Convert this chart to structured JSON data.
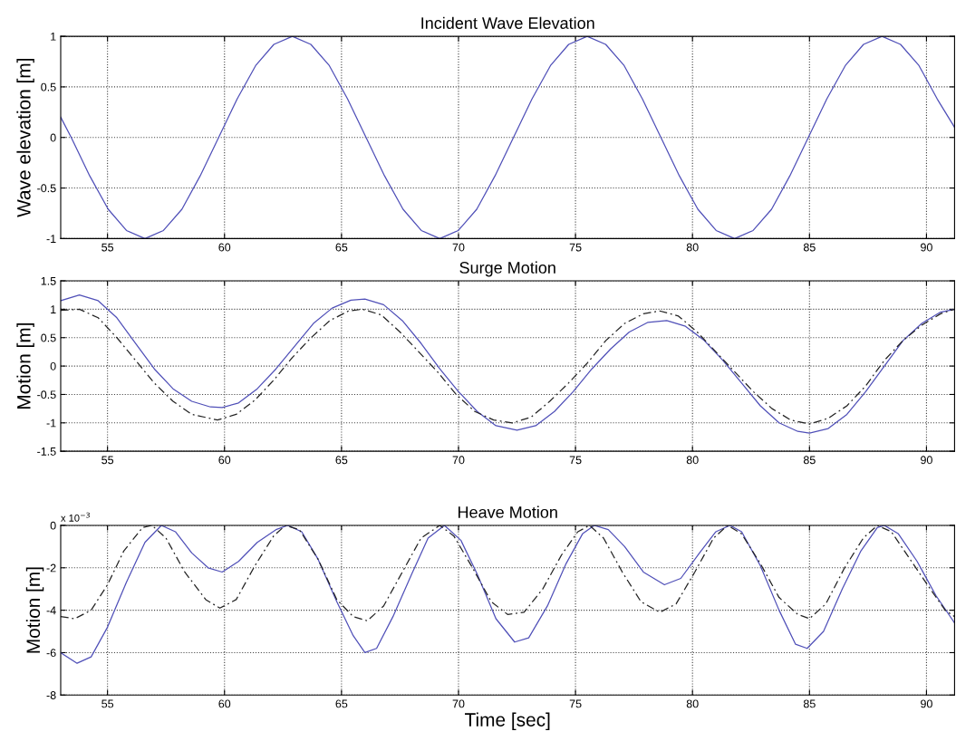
{
  "chart_data": [
    {
      "type": "line",
      "title": "Incident Wave Elevation",
      "ylabel": "Wave elevation [m]",
      "xlim": [
        53,
        91.2
      ],
      "xticks": [
        55,
        60,
        65,
        70,
        75,
        80,
        85,
        90
      ],
      "ylim": [
        -1,
        1
      ],
      "yticks": [
        -1,
        -0.5,
        0,
        0.5,
        1
      ],
      "grid": true,
      "series": [
        {
          "color": "#5050b8",
          "line_style": "solid",
          "x": [
            53.0,
            53.45,
            54.24,
            55.03,
            55.81,
            56.6,
            57.39,
            58.18,
            58.96,
            59.75,
            60.54,
            61.33,
            62.11,
            62.9,
            63.69,
            64.48,
            65.26,
            66.05,
            66.84,
            67.63,
            68.41,
            69.2,
            69.99,
            70.78,
            71.56,
            72.35,
            73.14,
            73.93,
            74.71,
            75.5,
            76.29,
            77.08,
            77.86,
            78.65,
            79.44,
            80.23,
            81.01,
            81.8,
            82.59,
            83.38,
            84.16,
            84.95,
            85.74,
            86.53,
            87.31,
            88.1,
            88.89,
            89.68,
            90.46,
            91.2
          ],
          "values": [
            0.2,
            0,
            -0.38,
            -0.71,
            -0.92,
            -1,
            -0.92,
            -0.71,
            -0.38,
            0,
            0.38,
            0.71,
            0.92,
            1,
            0.92,
            0.71,
            0.38,
            0,
            -0.38,
            -0.71,
            -0.92,
            -1,
            -0.92,
            -0.71,
            -0.38,
            0,
            0.38,
            0.71,
            0.92,
            1,
            0.92,
            0.71,
            0.38,
            0,
            -0.38,
            -0.71,
            -0.92,
            -1,
            -0.92,
            -0.71,
            -0.38,
            0,
            0.38,
            0.71,
            0.92,
            1,
            0.92,
            0.71,
            0.38,
            0.1
          ]
        }
      ]
    },
    {
      "type": "line",
      "title": "Surge Motion",
      "ylabel": "Motion [m]",
      "xlim": [
        53,
        91.2
      ],
      "xticks": [
        55,
        60,
        65,
        70,
        75,
        80,
        85,
        90
      ],
      "ylim": [
        -1.5,
        1.5
      ],
      "yticks": [
        -1.5,
        -1,
        -0.5,
        0,
        0.5,
        1,
        1.5
      ],
      "grid": true,
      "series": [
        {
          "color": "#5050b8",
          "line_style": "solid",
          "x": [
            53,
            53.8,
            54.6,
            55.4,
            56.2,
            57,
            57.8,
            58.6,
            59.4,
            59.9,
            60.6,
            61.4,
            62.2,
            63,
            63.8,
            64.6,
            65.4,
            66,
            66.8,
            67.6,
            68.4,
            69.2,
            70,
            70.8,
            71.6,
            72.5,
            73.3,
            74.1,
            74.9,
            75.7,
            76.5,
            77.3,
            78.1,
            78.9,
            79.7,
            80.5,
            81.3,
            82.1,
            82.9,
            83.7,
            84.5,
            85,
            85.8,
            86.6,
            87.4,
            88.2,
            89,
            89.8,
            90.6,
            91.2
          ],
          "values": [
            1.15,
            1.25,
            1.15,
            0.85,
            0.4,
            -0.05,
            -0.4,
            -0.62,
            -0.72,
            -0.73,
            -0.65,
            -0.4,
            -0.05,
            0.35,
            0.75,
            1.02,
            1.16,
            1.18,
            1.08,
            0.8,
            0.4,
            -0.05,
            -0.45,
            -0.8,
            -1.05,
            -1.13,
            -1.05,
            -0.8,
            -0.45,
            -0.05,
            0.3,
            0.6,
            0.77,
            0.8,
            0.7,
            0.45,
            0.1,
            -0.3,
            -0.7,
            -1.0,
            -1.15,
            -1.18,
            -1.1,
            -0.85,
            -0.45,
            0.0,
            0.45,
            0.75,
            0.95,
            1.0
          ]
        },
        {
          "color": "#222222",
          "line_style": "dashed",
          "x": [
            53,
            53.8,
            54.6,
            55.4,
            56.2,
            57,
            57.8,
            58.6,
            59.7,
            60.5,
            61.3,
            62.1,
            62.9,
            63.7,
            64.5,
            65.3,
            65.9,
            66.7,
            67.5,
            68.3,
            69.1,
            69.9,
            70.7,
            71.5,
            72.3,
            73.1,
            73.9,
            74.7,
            75.5,
            76.3,
            77.1,
            77.9,
            78.6,
            79.4,
            80.2,
            81,
            81.8,
            82.6,
            83.4,
            84.2,
            85,
            85.8,
            86.6,
            87.4,
            88.2,
            89,
            89.8,
            90.6,
            91.2
          ],
          "values": [
            0.98,
            1.0,
            0.85,
            0.5,
            0.1,
            -0.3,
            -0.62,
            -0.85,
            -0.95,
            -0.85,
            -0.6,
            -0.25,
            0.15,
            0.5,
            0.8,
            0.97,
            1.0,
            0.9,
            0.6,
            0.25,
            -0.1,
            -0.5,
            -0.8,
            -0.95,
            -1.0,
            -0.9,
            -0.62,
            -0.3,
            0.05,
            0.45,
            0.75,
            0.92,
            0.97,
            0.88,
            0.6,
            0.25,
            -0.1,
            -0.45,
            -0.75,
            -0.95,
            -1.02,
            -0.92,
            -0.7,
            -0.35,
            0.1,
            0.45,
            0.72,
            0.92,
            1.0
          ]
        }
      ]
    },
    {
      "type": "line",
      "title": "Heave Motion",
      "ylabel": "Motion [m]",
      "xlabel": "Time [sec]",
      "annotations": [
        "x 10$^{−3}$"
      ],
      "xlim": [
        53,
        91.2
      ],
      "xticks": [
        55,
        60,
        65,
        70,
        75,
        80,
        85,
        90
      ],
      "ylim": [
        -8,
        0
      ],
      "yticks": [
        -8,
        -6,
        -4,
        -2,
        0
      ],
      "grid": true,
      "series": [
        {
          "color": "#5050b8",
          "line_style": "solid",
          "x": [
            53,
            53.7,
            54.3,
            55,
            55.8,
            56.6,
            57.3,
            57.9,
            58.6,
            59.3,
            59.9,
            60.6,
            61.4,
            62.2,
            62.7,
            63.3,
            64,
            64.8,
            65.5,
            66,
            66.5,
            67.2,
            68,
            68.7,
            69.4,
            70.1,
            70.8,
            71.6,
            72.4,
            73,
            73.8,
            74.6,
            75.3,
            75.8,
            76.4,
            77.1,
            77.9,
            78.8,
            79.5,
            80.3,
            81,
            81.6,
            82.1,
            82.9,
            83.7,
            84.4,
            84.9,
            85.6,
            86.4,
            87.2,
            87.9,
            88.2,
            88.8,
            89.6,
            90.4,
            91.2
          ],
          "values": [
            -6.0,
            -6.5,
            -6.2,
            -4.8,
            -2.7,
            -0.8,
            0.0,
            -0.3,
            -1.3,
            -2.0,
            -2.2,
            -1.7,
            -0.8,
            -0.2,
            0,
            -0.3,
            -1.6,
            -3.6,
            -5.2,
            -6.0,
            -5.8,
            -4.3,
            -2.3,
            -0.6,
            0,
            -0.7,
            -2.3,
            -4.4,
            -5.5,
            -5.3,
            -3.8,
            -1.8,
            -0.4,
            0,
            -0.2,
            -1.0,
            -2.2,
            -2.8,
            -2.5,
            -1.3,
            -0.3,
            0,
            -0.3,
            -1.9,
            -4.0,
            -5.6,
            -5.8,
            -5.0,
            -3.0,
            -1.2,
            -0.1,
            0,
            -0.4,
            -1.7,
            -3.3,
            -4.6
          ]
        },
        {
          "color": "#222222",
          "line_style": "dashed",
          "x": [
            53,
            53.6,
            54.3,
            55,
            55.7,
            56.5,
            56.9,
            57.5,
            58.3,
            59.2,
            59.8,
            60.5,
            61.3,
            62.1,
            62.6,
            63.2,
            64,
            64.8,
            65.5,
            66.1,
            66.8,
            67.6,
            68.4,
            69.2,
            69.8,
            70.6,
            71.4,
            72.1,
            72.8,
            73.6,
            74.4,
            75.1,
            75.6,
            76.2,
            77,
            77.8,
            78.6,
            79.3,
            80.1,
            80.9,
            81.5,
            82.1,
            82.9,
            83.7,
            84.5,
            85,
            85.7,
            86.5,
            87.3,
            87.9,
            88.5,
            89.3,
            90.1,
            90.8,
            91.2
          ],
          "values": [
            -4.3,
            -4.4,
            -4.0,
            -2.8,
            -1.2,
            -0.1,
            0,
            -0.6,
            -2.2,
            -3.5,
            -3.9,
            -3.5,
            -1.9,
            -0.5,
            0,
            -0.2,
            -1.6,
            -3.5,
            -4.3,
            -4.5,
            -3.8,
            -2.2,
            -0.6,
            0,
            -0.5,
            -2.0,
            -3.6,
            -4.2,
            -4.1,
            -3.0,
            -1.4,
            -0.3,
            0,
            -0.6,
            -2.2,
            -3.6,
            -4.1,
            -3.7,
            -2.2,
            -0.6,
            0,
            -0.4,
            -1.8,
            -3.4,
            -4.2,
            -4.4,
            -3.7,
            -2.0,
            -0.6,
            0,
            -0.3,
            -1.6,
            -2.9,
            -4.0,
            -4.3
          ]
        }
      ]
    }
  ]
}
